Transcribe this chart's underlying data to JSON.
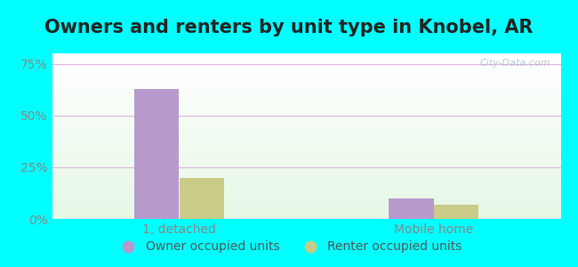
{
  "title": "Owners and renters by unit type in Knobel, AR",
  "categories": [
    "1, detached",
    "Mobile home"
  ],
  "owner_values": [
    63,
    10
  ],
  "renter_values": [
    20,
    7
  ],
  "owner_color": "#b899cc",
  "renter_color": "#c8cc88",
  "yticks": [
    0,
    25,
    50,
    75
  ],
  "ytick_labels": [
    "0%",
    "25%",
    "50%",
    "75%"
  ],
  "ylim": [
    0,
    80
  ],
  "outer_bg": "#00ffff",
  "watermark": "City-Data.com",
  "legend_labels": [
    "Owner occupied units",
    "Renter occupied units"
  ],
  "bar_width": 0.35,
  "group_positions": [
    1,
    3
  ],
  "title_fontsize": 15,
  "tick_fontsize": 10,
  "legend_fontsize": 10,
  "grid_color": "#ddaadd",
  "tick_color": "#888888",
  "title_color": "#222222"
}
